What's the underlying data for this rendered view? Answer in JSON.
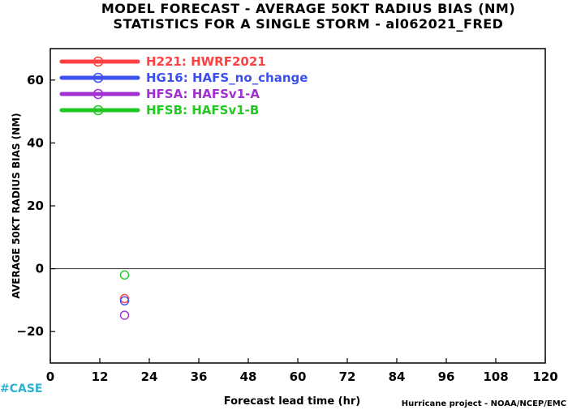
{
  "chart_data": {
    "type": "scatter",
    "title": "MODEL FORECAST - AVERAGE 50KT RADIUS BIAS (NM)",
    "subtitle": "STATISTICS FOR A SINGLE STORM - al062021_FRED",
    "xlabel": "Forecast lead time (hr)",
    "ylabel": "AVERAGE 50KT RADIUS BIAS (NM)",
    "xlim": [
      0,
      120
    ],
    "ylim": [
      -30,
      70
    ],
    "xticks": [
      "0",
      "12",
      "24",
      "36",
      "48",
      "60",
      "72",
      "84",
      "96",
      "108",
      "120"
    ],
    "yticks": [
      "−20",
      "0",
      "20",
      "40",
      "60"
    ],
    "reference_line_y": 0,
    "grid": false,
    "legend_position": "top-left",
    "series": [
      {
        "name": "H221: HWRF2021",
        "color": "#ff4040",
        "x": [
          18
        ],
        "y": [
          -9.5
        ]
      },
      {
        "name": "HG16: HAFS_no_change",
        "color": "#3c50f0",
        "x": [
          18
        ],
        "y": [
          -10.2
        ]
      },
      {
        "name": "HFSA: HAFSv1-A",
        "color": "#a030d0",
        "x": [
          18
        ],
        "y": [
          -14.8
        ]
      },
      {
        "name": "HFSB: HAFSv1-B",
        "color": "#20c820",
        "x": [
          18
        ],
        "y": [
          -2
        ]
      }
    ]
  },
  "footer": {
    "case_label": "#CASE",
    "case_color": "#30b0d0",
    "credit": "Hurricane project - NOAA/NCEP/EMC"
  }
}
